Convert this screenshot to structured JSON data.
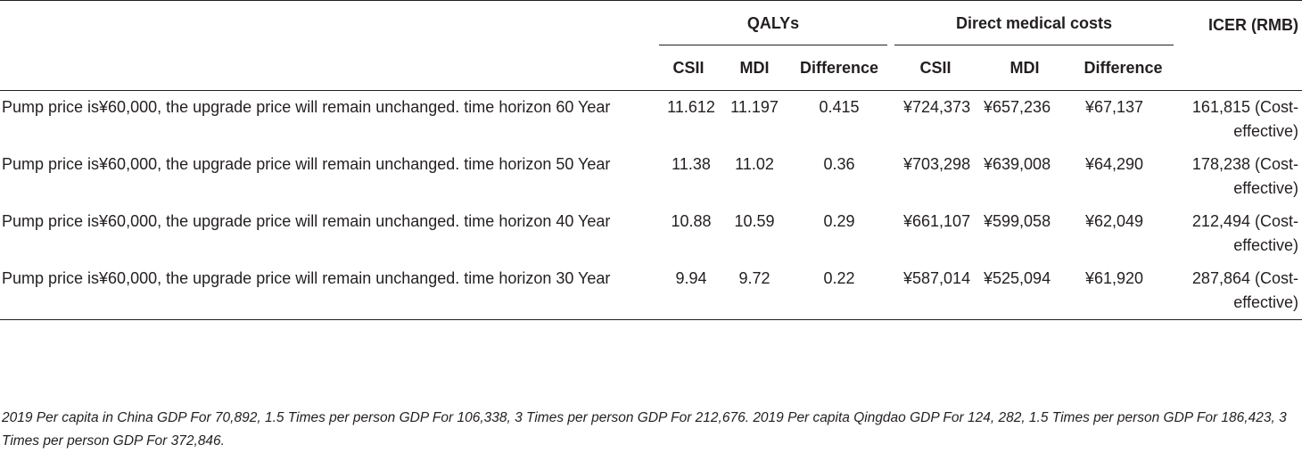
{
  "header": {
    "qalys": "QALYs",
    "direct_costs": "Direct medical costs",
    "icer": "ICER (RMB)",
    "sub": [
      "CSII",
      "MDI",
      "Difference",
      "CSII",
      "MDI",
      "Difference"
    ]
  },
  "rows": [
    {
      "scenario": "Pump price is¥60,000, the upgrade price will remain unchanged. time horizon 60 Year",
      "q_csii": "11.612",
      "q_mdi": "11.197",
      "q_diff": "0.415",
      "c_csii": "¥724,373",
      "c_mdi": "¥657,236",
      "c_diff": "¥67,137",
      "icer": "161,815 (Cost-effective)"
    },
    {
      "scenario": "Pump price is¥60,000, the upgrade price will remain unchanged. time horizon 50 Year",
      "q_csii": "11.38",
      "q_mdi": "11.02",
      "q_diff": "0.36",
      "c_csii": "¥703,298",
      "c_mdi": "¥639,008",
      "c_diff": "¥64,290",
      "icer": "178,238 (Cost-effective)"
    },
    {
      "scenario": "Pump price is¥60,000, the upgrade price will remain unchanged. time horizon 40 Year",
      "q_csii": "10.88",
      "q_mdi": "10.59",
      "q_diff": "0.29",
      "c_csii": "¥661,107",
      "c_mdi": "¥599,058",
      "c_diff": "¥62,049",
      "icer": "212,494 (Cost-effective)"
    },
    {
      "scenario": "Pump price is¥60,000, the upgrade price will remain unchanged. time horizon 30 Year",
      "q_csii": "9.94",
      "q_mdi": "9.72",
      "q_diff": "0.22",
      "c_csii": "¥587,014",
      "c_mdi": "¥525,094",
      "c_diff": "¥61,920",
      "icer": "287,864 (Cost-effective)"
    }
  ],
  "footnote": "2019 Per capita in China GDP For 70,892, 1.5 Times per person GDP For 106,338, 3 Times per person GDP For 212,676. 2019 Per capita Qingdao GDP For 124, 282, 1.5 Times per person GDP For 186,423, 3 Times per person GDP For 372,846."
}
